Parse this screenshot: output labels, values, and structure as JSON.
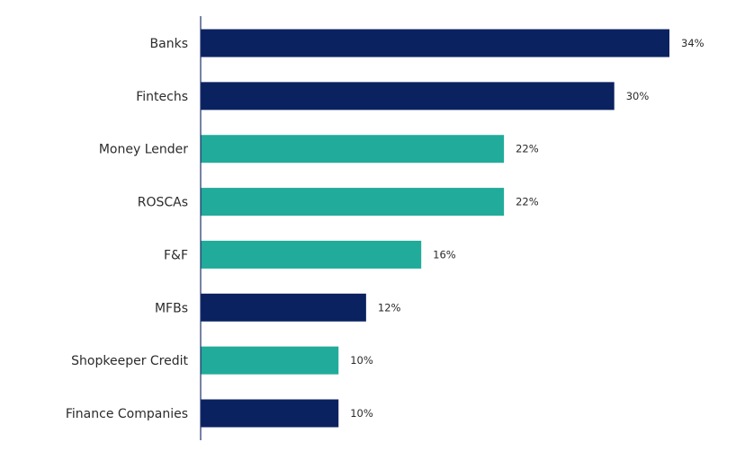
{
  "chart_data": {
    "type": "bar",
    "orientation": "horizontal",
    "title": "",
    "xlabel": "",
    "ylabel": "",
    "xlim": [
      0,
      34
    ],
    "grid": false,
    "legend": "none",
    "categories": [
      "Banks",
      "Fintechs",
      "Money Lender",
      "ROSCAs",
      "F&F",
      "MFBs",
      "Shopkeeper Credit",
      "Finance Companies"
    ],
    "values": [
      34,
      30,
      22,
      22,
      16,
      12,
      10,
      10
    ],
    "value_labels": [
      "34%",
      "30%",
      "22%",
      "22%",
      "16%",
      "12%",
      "10%",
      "10%"
    ],
    "bar_color_groups": [
      "formal",
      "formal",
      "informal",
      "informal",
      "informal",
      "formal",
      "informal",
      "formal"
    ],
    "colors": {
      "formal": "#0b2260",
      "informal": "#21ab9a",
      "axis": "#1f2f6b"
    }
  }
}
